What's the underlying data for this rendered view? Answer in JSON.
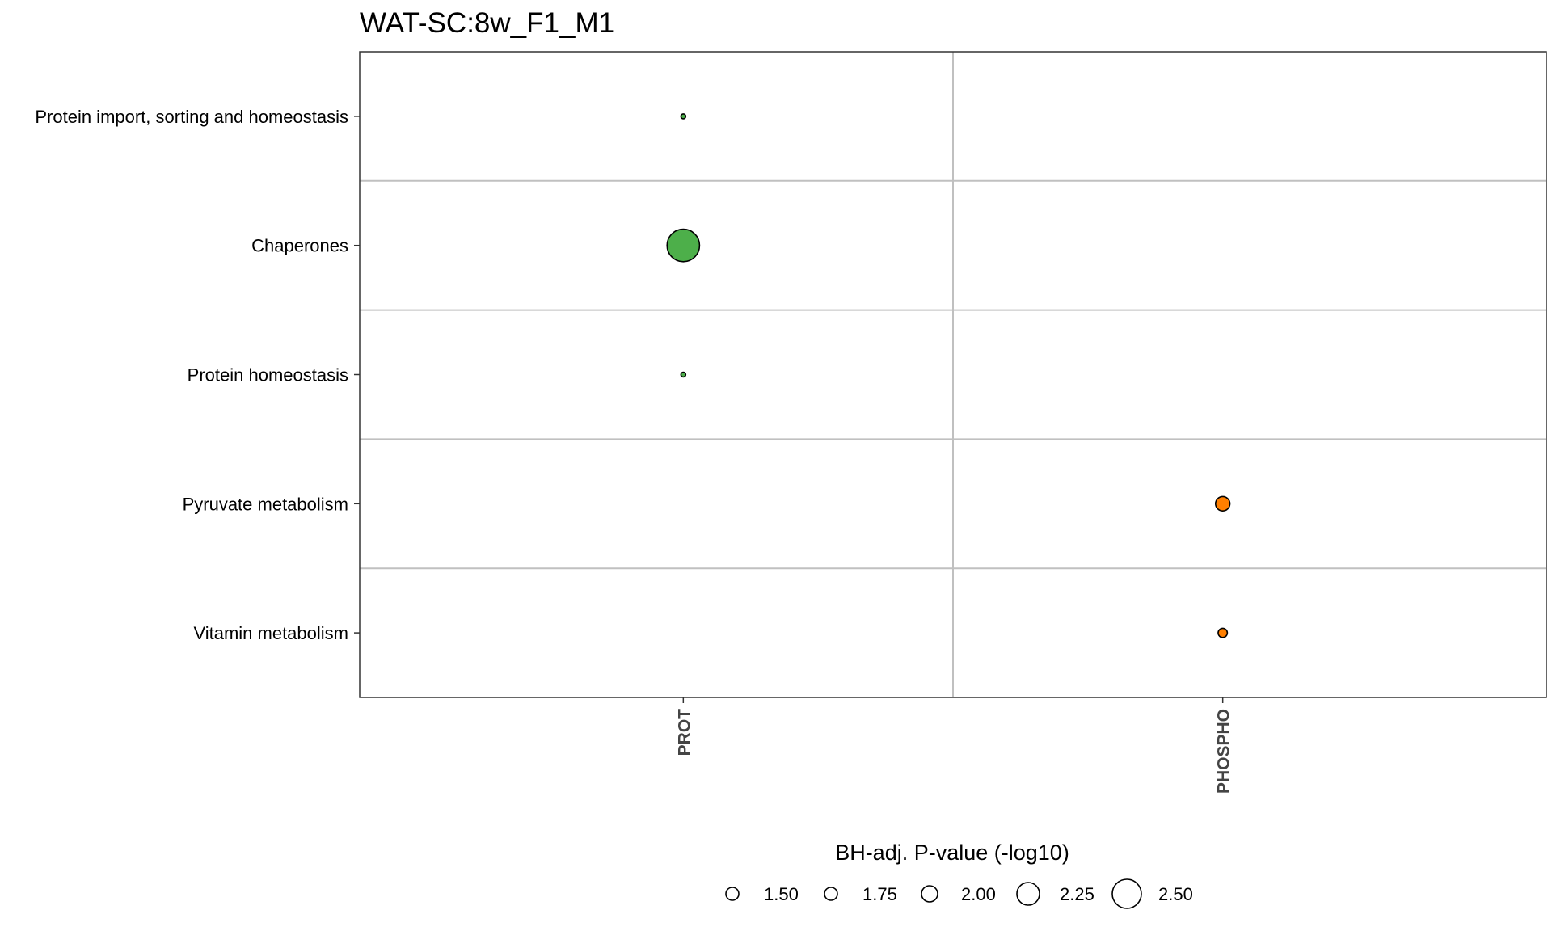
{
  "chart_data": {
    "type": "scatter",
    "title": "WAT-SC:8w_F1_M1",
    "categories_x": [
      "PROT",
      "PHOSPHO"
    ],
    "categories_y": [
      "Protein import, sorting and homeostasis",
      "Chaperones",
      "Protein homeostasis",
      "Pyruvate metabolism",
      "Vitamin metabolism"
    ],
    "points": [
      {
        "x": "PROT",
        "y": "Protein import, sorting and homeostasis",
        "size_value": 1.35,
        "color": "#4daf4a"
      },
      {
        "x": "PROT",
        "y": "Chaperones",
        "size_value": 2.6,
        "color": "#4daf4a"
      },
      {
        "x": "PROT",
        "y": "Protein homeostasis",
        "size_value": 1.4,
        "color": "#4daf4a"
      },
      {
        "x": "PHOSPHO",
        "y": "Pyruvate metabolism",
        "size_value": 1.9,
        "color": "#ff7f00"
      },
      {
        "x": "PHOSPHO",
        "y": "Vitamin metabolism",
        "size_value": 1.7,
        "color": "#ff7f00"
      }
    ],
    "size_legend": {
      "title": "BH-adj. P-value (-log10)",
      "values": [
        1.5,
        1.75,
        2.0,
        2.25,
        2.5
      ],
      "labels": [
        "1.50",
        "1.75",
        "2.00",
        "2.25",
        "2.50"
      ]
    },
    "grid": true,
    "legend_position": "bottom"
  }
}
